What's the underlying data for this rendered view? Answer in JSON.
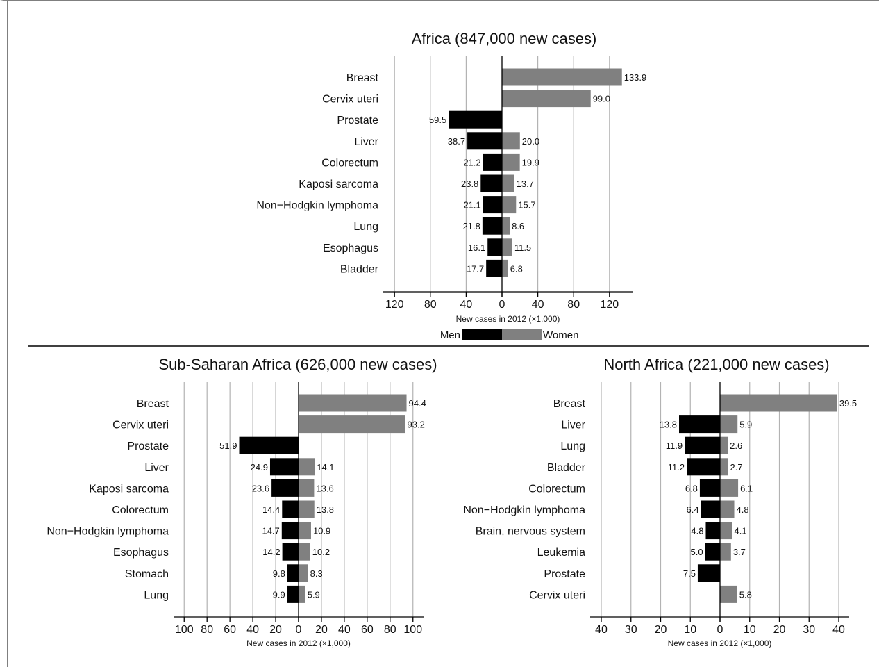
{
  "legend": {
    "men_label": "Men",
    "women_label": "Women"
  },
  "colors": {
    "men": "#000000",
    "women": "#808080",
    "grid": "#b3b3b3",
    "axis": "#000000",
    "text": "#111111"
  },
  "chart_data": [
    {
      "type": "bar",
      "orientation": "horizontal-butterfly",
      "title": "Africa (847,000 new cases)",
      "xlabel": "New cases in 2012 (×1,000)",
      "xlim": [
        -140,
        140
      ],
      "ticks": [
        -120,
        -80,
        -40,
        0,
        40,
        80,
        120
      ],
      "tick_labels": [
        "120",
        "80",
        "40",
        "0",
        "40",
        "80",
        "120"
      ],
      "grid": true,
      "categories": [
        "Breast",
        "Cervix uteri",
        "Prostate",
        "Liver",
        "Colorectum",
        "Kaposi sarcoma",
        "Non−Hodgkin lymphoma",
        "Lung",
        "Esophagus",
        "Bladder"
      ],
      "series": [
        {
          "name": "Men",
          "values": [
            null,
            null,
            59.5,
            38.7,
            21.2,
            23.8,
            21.1,
            21.8,
            16.1,
            17.7
          ]
        },
        {
          "name": "Women",
          "values": [
            133.9,
            99.0,
            null,
            20.0,
            19.9,
            13.7,
            15.7,
            8.6,
            11.5,
            6.8
          ]
        }
      ]
    },
    {
      "type": "bar",
      "orientation": "horizontal-butterfly",
      "title": "Sub-Saharan Africa (626,000 new cases)",
      "xlabel": "New cases in 2012 (×1,000)",
      "xlim": [
        -105,
        105
      ],
      "ticks": [
        -100,
        -80,
        -60,
        -40,
        -20,
        0,
        20,
        40,
        60,
        80,
        100
      ],
      "tick_labels": [
        "100",
        "80",
        "60",
        "40",
        "20",
        "0",
        "20",
        "40",
        "60",
        "80",
        "100"
      ],
      "grid": true,
      "categories": [
        "Breast",
        "Cervix uteri",
        "Prostate",
        "Liver",
        "Kaposi sarcoma",
        "Colorectum",
        "Non−Hodgkin lymphoma",
        "Esophagus",
        "Stomach",
        "Lung"
      ],
      "series": [
        {
          "name": "Men",
          "values": [
            null,
            null,
            51.9,
            24.9,
            23.6,
            14.4,
            14.7,
            14.2,
            9.8,
            9.9
          ]
        },
        {
          "name": "Women",
          "values": [
            94.4,
            93.2,
            null,
            14.1,
            13.6,
            13.8,
            10.9,
            10.2,
            8.3,
            5.9
          ]
        }
      ]
    },
    {
      "type": "bar",
      "orientation": "horizontal-butterfly",
      "title": "North Africa (221,000 new cases)",
      "xlabel": "New cases in 2012 (×1,000)",
      "xlim": [
        -43,
        44
      ],
      "ticks": [
        -40,
        -30,
        -20,
        -10,
        0,
        10,
        20,
        30,
        40
      ],
      "tick_labels": [
        "40",
        "30",
        "20",
        "10",
        "0",
        "10",
        "20",
        "30",
        "40"
      ],
      "grid": true,
      "categories": [
        "Breast",
        "Liver",
        "Lung",
        "Bladder",
        "Colorectum",
        "Non−Hodgkin lymphoma",
        "Brain, nervous system",
        "Leukemia",
        "Prostate",
        "Cervix uteri"
      ],
      "series": [
        {
          "name": "Men",
          "values": [
            null,
            13.8,
            11.9,
            11.2,
            6.8,
            6.4,
            4.8,
            5.0,
            7.5,
            null
          ]
        },
        {
          "name": "Women",
          "values": [
            39.5,
            5.9,
            2.6,
            2.7,
            6.1,
            4.8,
            4.1,
            3.7,
            null,
            5.8
          ]
        }
      ]
    }
  ]
}
